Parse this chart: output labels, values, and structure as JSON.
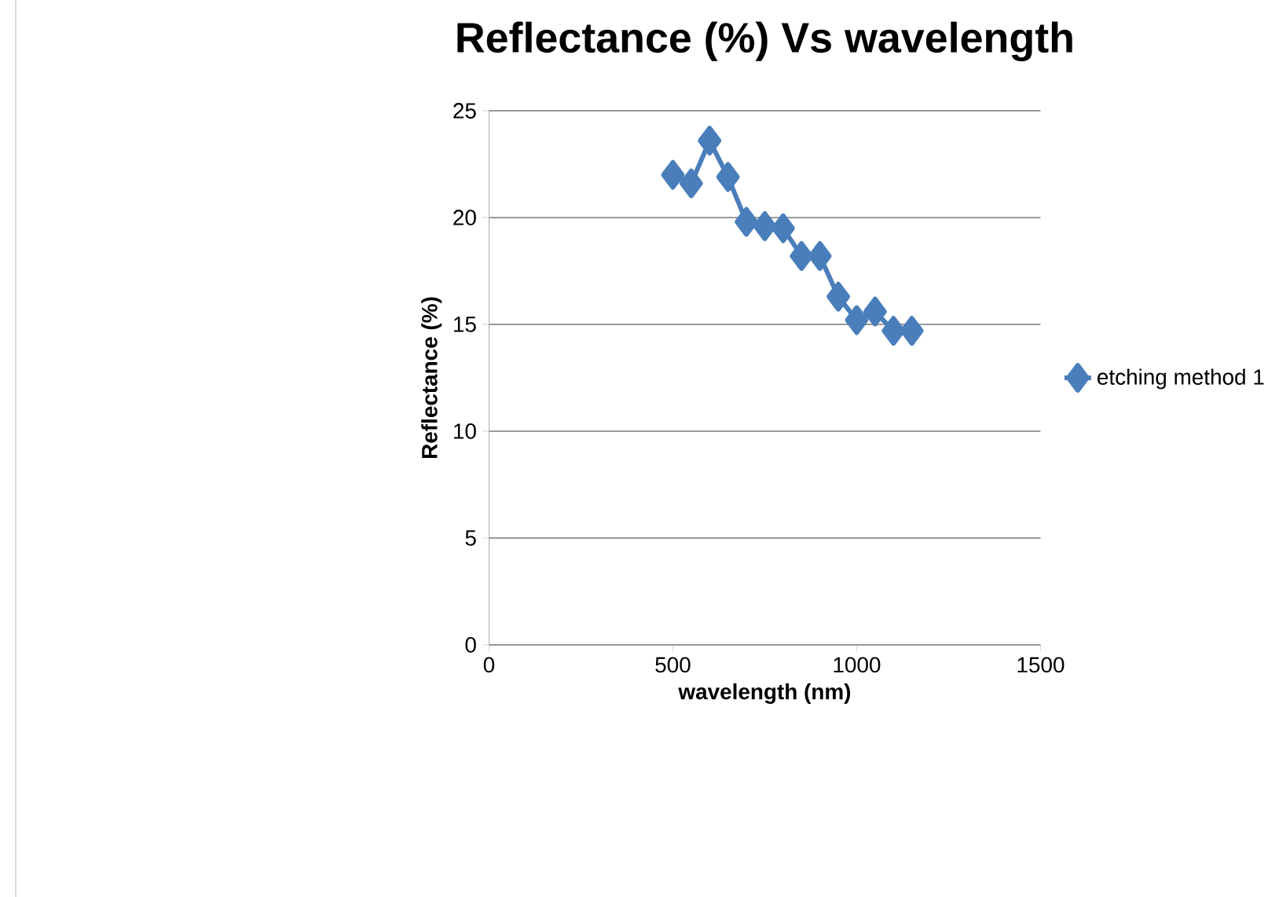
{
  "chart_data": {
    "type": "line",
    "title": "Reflectance (%) Vs wavelength",
    "xlabel": "wavelength (nm)",
    "ylabel": "Reflectance (%)",
    "x": [
      500,
      550,
      600,
      650,
      700,
      750,
      800,
      850,
      900,
      950,
      1000,
      1050,
      1100,
      1150
    ],
    "series": [
      {
        "name": "etching method 1",
        "color": "#4a7ebb",
        "values": [
          22.0,
          21.6,
          23.6,
          21.9,
          19.8,
          19.6,
          19.5,
          18.2,
          18.2,
          16.3,
          15.2,
          15.6,
          14.7,
          14.7
        ]
      }
    ],
    "xlim": [
      0,
      1500
    ],
    "xticks": [
      0,
      500,
      1000,
      1500
    ],
    "ylim": [
      0,
      25
    ],
    "yticks": [
      0,
      5,
      10,
      15,
      20,
      25
    ],
    "grid": "y",
    "legend": "right",
    "marker": "diamond",
    "line_style": "solid"
  }
}
